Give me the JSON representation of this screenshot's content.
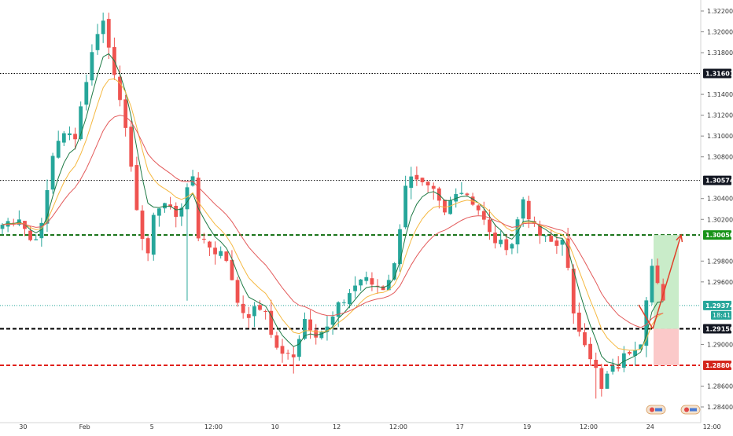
{
  "chart_data": {
    "type": "candlestick",
    "instrument_note": "",
    "y_axis": {
      "range": [
        1.2825,
        1.3225
      ],
      "ticks": [
        "1.32200",
        "1.32000",
        "1.31800",
        "1.31400",
        "1.31200",
        "1.31000",
        "1.30800",
        "1.30400",
        "1.30200",
        "1.29800",
        "1.29600",
        "1.29000",
        "1.28600",
        "1.28400"
      ],
      "tick_values": [
        1.322,
        1.32,
        1.318,
        1.314,
        1.312,
        1.31,
        1.308,
        1.304,
        1.302,
        1.298,
        1.296,
        1.29,
        1.286,
        1.284
      ]
    },
    "x_axis": {
      "labels": [
        "30",
        "Feb",
        "5",
        "12:00",
        "10",
        "12",
        "12:00",
        "17",
        "19",
        "12:00",
        "24",
        "12:00"
      ],
      "label_bar_index": [
        3,
        14,
        26,
        37,
        48,
        59,
        70,
        81,
        93,
        104,
        115,
        126
      ]
    },
    "horizontal_levels": [
      {
        "label": "1.31601",
        "value": 1.31601,
        "style": "dotted",
        "color": "#000000",
        "badge_bg": "#131722",
        "badge_fg": "#ffffff"
      },
      {
        "label": "1.30574",
        "value": 1.30574,
        "style": "dotted",
        "color": "#000000",
        "badge_bg": "#131722",
        "badge_fg": "#ffffff"
      },
      {
        "label": "1.30050",
        "value": 1.3005,
        "style": "dashed-bold",
        "color": "#0c6b0c",
        "badge_bg": "#189318",
        "badge_fg": "#ffffff"
      },
      {
        "label": "1.29150",
        "value": 1.2915,
        "style": "dashed-bold",
        "color": "#000000",
        "badge_bg": "#131722",
        "badge_fg": "#ffffff"
      },
      {
        "label": "1.28800",
        "value": 1.288,
        "style": "dashed-bold",
        "color": "#e0201a",
        "badge_bg": "#d3251c",
        "badge_fg": "#ffffff"
      }
    ],
    "current_price": {
      "label": "1.29374",
      "value": 1.29374,
      "timer": "18:41",
      "color": "#26a69a"
    },
    "position": {
      "entry": 1.2915,
      "target": 1.3005,
      "stop": 1.288,
      "profit_color": "#c9ecc9",
      "loss_color": "#fbc9c9"
    },
    "projection_arrows": [
      {
        "from": [
          118,
          1.2938
        ],
        "to": [
          121,
          1.2915
        ]
      },
      {
        "from": [
          121,
          1.2915
        ],
        "to": [
          124,
          1.3005
        ]
      }
    ],
    "colors": {
      "bull": "#26a69a",
      "bear": "#ef5350",
      "ma_fast": "#1e7a45",
      "ma_mid": "#f5b841",
      "ma_slow": "#e35a5a",
      "arrow": "#e0402a"
    },
    "close_anchors": [
      [
        0,
        1.3015
      ],
      [
        3,
        1.3023
      ],
      [
        5,
        1.3
      ],
      [
        7,
        1.3012
      ],
      [
        9,
        1.3082
      ],
      [
        10,
        1.3098
      ],
      [
        13,
        1.3102
      ],
      [
        15,
        1.3155
      ],
      [
        17,
        1.3202
      ],
      [
        18,
        1.321
      ],
      [
        19,
        1.3185
      ],
      [
        21,
        1.314
      ],
      [
        23,
        1.3065
      ],
      [
        25,
        1.3002
      ],
      [
        26,
        1.2982
      ],
      [
        27,
        1.3028
      ],
      [
        29,
        1.3035
      ],
      [
        31,
        1.3025
      ],
      [
        33,
        1.3045
      ],
      [
        34,
        1.3062
      ],
      [
        35,
        1.3005
      ],
      [
        37,
        1.2995
      ],
      [
        40,
        1.2982
      ],
      [
        42,
        1.2945
      ],
      [
        43,
        1.2925
      ],
      [
        45,
        1.2932
      ],
      [
        47,
        1.2935
      ],
      [
        48,
        1.2908
      ],
      [
        50,
        1.2888
      ],
      [
        52,
        1.2892
      ],
      [
        54,
        1.2925
      ],
      [
        56,
        1.2912
      ],
      [
        58,
        1.2915
      ],
      [
        60,
        1.2935
      ],
      [
        62,
        1.295
      ],
      [
        64,
        1.2963
      ],
      [
        66,
        1.2958
      ],
      [
        68,
        1.2955
      ],
      [
        70,
        1.2975
      ],
      [
        72,
        1.3055
      ],
      [
        73,
        1.3058
      ],
      [
        75,
        1.305
      ],
      [
        77,
        1.3045
      ],
      [
        79,
        1.3025
      ],
      [
        81,
        1.305
      ],
      [
        83,
        1.3045
      ],
      [
        85,
        1.303
      ],
      [
        87,
        1.3005
      ],
      [
        89,
        1.2995
      ],
      [
        91,
        1.2998
      ],
      [
        93,
        1.304
      ],
      [
        95,
        1.301
      ],
      [
        97,
        1.3
      ],
      [
        99,
        1.2995
      ],
      [
        100,
        1.3005
      ],
      [
        101,
        1.297
      ],
      [
        102,
        1.2925
      ],
      [
        104,
        1.2905
      ],
      [
        106,
        1.2875
      ],
      [
        107,
        1.2855
      ],
      [
        108,
        1.287
      ],
      [
        110,
        1.288
      ],
      [
        112,
        1.2895
      ],
      [
        114,
        1.2905
      ],
      [
        115,
        1.2948
      ],
      [
        116,
        1.2975
      ],
      [
        117,
        1.2955
      ],
      [
        118,
        1.2938
      ]
    ],
    "bar_count": 119
  }
}
